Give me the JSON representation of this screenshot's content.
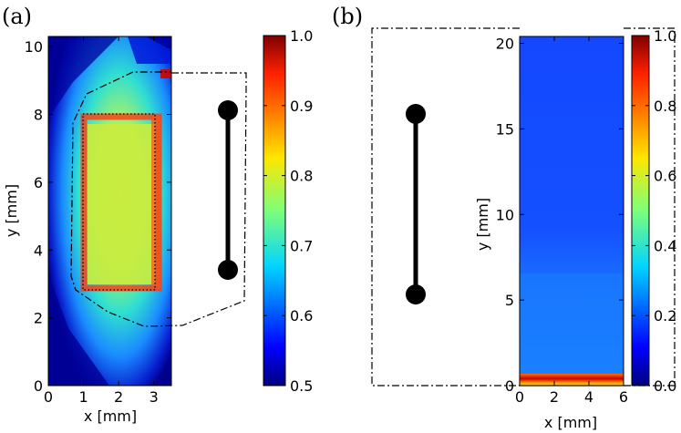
{
  "figure": {
    "panels": [
      {
        "label": "(a)"
      },
      {
        "label": "(b)"
      }
    ]
  },
  "chart_data": [
    {
      "type": "heatmap",
      "panel": "(a)",
      "xlabel": "x [mm]",
      "ylabel": "y [mm]",
      "xlim": [
        0,
        3.5
      ],
      "ylim": [
        0,
        10.3
      ],
      "xticks": [
        "0",
        "1",
        "2",
        "3"
      ],
      "yticks": [
        "0",
        "2",
        "4",
        "6",
        "8",
        "10"
      ],
      "colorbar": {
        "range": [
          0.5,
          1.0
        ],
        "ticks": [
          "0.5",
          "0.6",
          "0.7",
          "0.8",
          "0.9",
          "1.0"
        ]
      },
      "regions": {
        "inner_rectangle": {
          "x": [
            1.0,
            3.05
          ],
          "y": [
            2.8,
            7.9
          ]
        },
        "outer_contour": [
          [
            0.65,
            3.2
          ],
          [
            0.7,
            7.9
          ],
          [
            1.0,
            8.65
          ],
          [
            2.5,
            9.1
          ],
          [
            3.45,
            9.1
          ]
        ],
        "lower_contour": [
          [
            0.65,
            3.2
          ],
          [
            1.4,
            2.2
          ],
          [
            2.7,
            1.75
          ],
          [
            3.5,
            1.75
          ]
        ]
      },
      "dumbbell": {
        "label": "",
        "ends": [
          "top",
          "bottom"
        ]
      }
    },
    {
      "type": "heatmap",
      "panel": "(b)",
      "xlabel": "x [mm]",
      "ylabel": "y [mm]",
      "xlim": [
        0,
        6
      ],
      "ylim": [
        0,
        20.4
      ],
      "xticks": [
        "0",
        "2",
        "4",
        "6"
      ],
      "yticks": [
        "0",
        "5",
        "10",
        "15",
        "20"
      ],
      "colorbar": {
        "range": [
          0.0,
          1.0
        ],
        "ticks": [
          "0.0",
          "0.2",
          "0.4",
          "0.6",
          "0.8",
          "1.0"
        ]
      },
      "hot_band": {
        "y": [
          0.3,
          1.0
        ],
        "value": 0.95
      },
      "dumbbell": {
        "label": "",
        "ends": [
          "top",
          "bottom"
        ]
      }
    }
  ]
}
